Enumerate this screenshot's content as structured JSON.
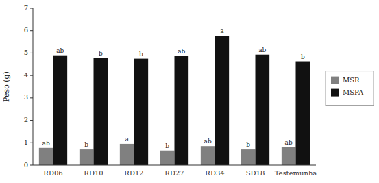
{
  "chart_data": {
    "type": "bar",
    "y_label": "Peso (g)",
    "categories": [
      "RD06",
      "RD10",
      "RD12",
      "RD27",
      "RD34",
      "SD18",
      "Testemunha"
    ],
    "series": [
      {
        "name": "MSR",
        "color": "#808080",
        "values": [
          0.77,
          0.7,
          0.95,
          0.65,
          0.85,
          0.7,
          0.8
        ],
        "labels": [
          "ab",
          "b",
          "a",
          "b",
          "ab",
          "b",
          "ab"
        ]
      },
      {
        "name": "MSPA",
        "color": "#111111",
        "values": [
          4.9,
          4.78,
          4.75,
          4.87,
          5.77,
          4.93,
          4.63
        ],
        "labels": [
          "ab",
          "b",
          "b",
          "ab",
          "a",
          "ab",
          "b"
        ]
      }
    ],
    "ylim": [
      0,
      7
    ],
    "yticks": [
      0,
      1,
      2,
      3,
      4,
      5,
      6,
      7
    ],
    "grid": false,
    "legend": "right"
  }
}
